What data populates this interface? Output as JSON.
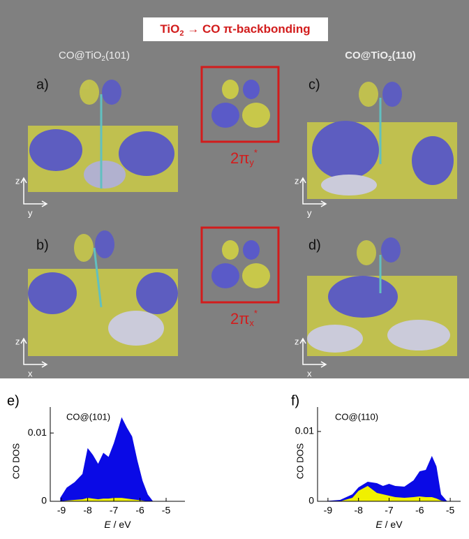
{
  "figure": {
    "title": {
      "main": "TiO",
      "sub": "2",
      "rest": " → CO π-backbonding"
    },
    "left_header": {
      "main": "CO@TiO",
      "sub": "2",
      "rest": "(101)"
    },
    "right_header": {
      "main": "CO@TiO",
      "sub": "2",
      "rest": "(110)"
    },
    "panel_labels": [
      "a)",
      "b)",
      "c)",
      "d)"
    ],
    "orbital_labels": [
      {
        "main": "2π",
        "sub": "y",
        "sup": "*"
      },
      {
        "main": "2π",
        "sub": "x",
        "sup": "*"
      }
    ],
    "axes_glyphs": [
      [
        "z",
        "y"
      ],
      [
        "z",
        "x"
      ],
      [
        "z",
        "y"
      ],
      [
        "z",
        "x"
      ]
    ]
  },
  "chart_data": [
    {
      "type": "area",
      "panel_label": "e)",
      "annotation": "CO@(101)",
      "x_label": {
        "italic": "E",
        "rest": " / eV"
      },
      "y_label": "CO DOS",
      "x": [
        -9.05,
        -8.8,
        -8.5,
        -8.2,
        -8.0,
        -7.8,
        -7.6,
        -7.4,
        -7.2,
        -7.0,
        -6.8,
        -6.7,
        -6.5,
        -6.3,
        -6.1,
        -5.9,
        -5.7,
        -5.5
      ],
      "series": [
        {
          "color": "#0a0ae6",
          "values": [
            0.0005,
            0.002,
            0.0028,
            0.004,
            0.0078,
            0.0068,
            0.0055,
            0.0071,
            0.0065,
            0.0085,
            0.011,
            0.0123,
            0.0108,
            0.0095,
            0.006,
            0.003,
            0.001,
            0
          ]
        },
        {
          "color": "#f0f000",
          "values": [
            0,
            0.0001,
            0.0002,
            0.0003,
            0.0005,
            0.0004,
            0.0003,
            0.0004,
            0.0004,
            0.0005,
            0.0005,
            0.0005,
            0.0004,
            0.0003,
            0.0002,
            0.0001,
            0,
            0
          ]
        }
      ],
      "xlim": [
        -9.43,
        -4.28
      ],
      "ylim": [
        0,
        0.0138
      ],
      "xticks": [
        -9,
        -8,
        -7,
        -6,
        -5
      ],
      "yticks": [
        0,
        0.01
      ]
    },
    {
      "type": "area",
      "panel_label": "f)",
      "annotation": "CO@(110)",
      "x_label": {
        "italic": "E",
        "rest": " / eV"
      },
      "y_label": "CO DOS",
      "x": [
        -9.2,
        -8.6,
        -8.2,
        -8.0,
        -7.7,
        -7.4,
        -7.2,
        -7.0,
        -6.8,
        -6.5,
        -6.2,
        -6.0,
        -5.8,
        -5.6,
        -5.45,
        -5.3,
        -5.1
      ],
      "series": [
        {
          "color": "#0a0ae6",
          "values": [
            0,
            0.0002,
            0.001,
            0.002,
            0.0028,
            0.0026,
            0.0022,
            0.0025,
            0.0022,
            0.0021,
            0.003,
            0.0043,
            0.0045,
            0.0065,
            0.005,
            0.001,
            0
          ]
        },
        {
          "color": "#f0f000",
          "values": [
            0,
            0,
            0.0005,
            0.0015,
            0.0022,
            0.0012,
            0.001,
            0.0008,
            0.0006,
            0.0005,
            0.0006,
            0.0007,
            0.0006,
            0.0006,
            0.0004,
            0.0001,
            0
          ]
        }
      ],
      "xlim": [
        -9.34,
        -4.66
      ],
      "ylim": [
        0,
        0.0135
      ],
      "xticks": [
        -9,
        -8,
        -7,
        -6,
        -5
      ],
      "yticks": [
        0,
        0.01
      ]
    }
  ]
}
